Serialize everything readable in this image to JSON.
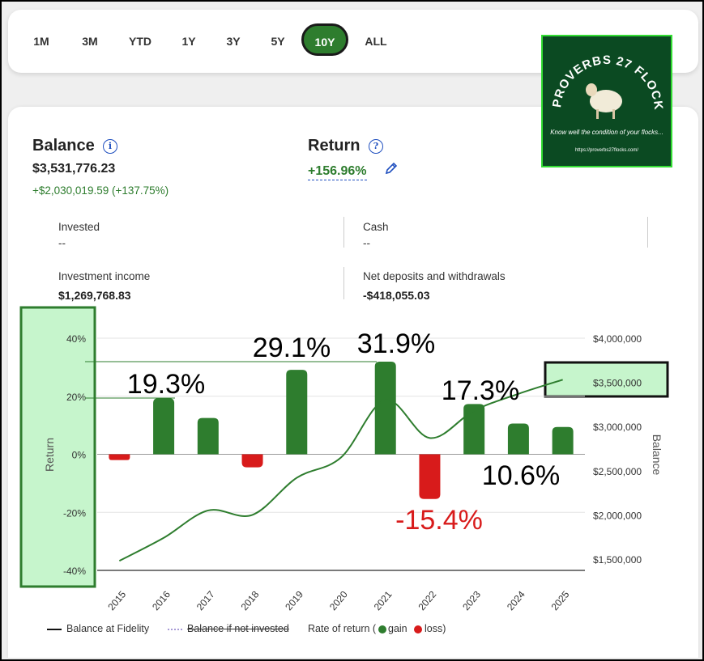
{
  "range_tabs": [
    {
      "label": "1M",
      "active": false
    },
    {
      "label": "3M",
      "active": false
    },
    {
      "label": "YTD",
      "active": false
    },
    {
      "label": "1Y",
      "active": false
    },
    {
      "label": "3Y",
      "active": false
    },
    {
      "label": "5Y",
      "active": false
    },
    {
      "label": "10Y",
      "active": true
    },
    {
      "label": "ALL",
      "active": false
    }
  ],
  "balance": {
    "title": "Balance",
    "value": "$3,531,776.23",
    "change": "+$2,030,019.59 (+137.75%)"
  },
  "return": {
    "title": "Return",
    "value": "+156.96%"
  },
  "stats": {
    "invested_label": "Invested",
    "invested_value": "--",
    "cash_label": "Cash",
    "cash_value": "--",
    "income_label": "Investment income",
    "income_value": "$1,269,768.83",
    "net_label": "Net deposits and withdrawals",
    "net_value": "-$418,055.03"
  },
  "logo": {
    "title": "PROVERBS 27 FLOCKS",
    "tagline": "Know well the condition of your flocks...",
    "url": "https://proverbs27flocks.com/"
  },
  "legend": {
    "balance": "Balance at Fidelity",
    "not_invested": "Balance if not invested",
    "rate": "Rate of return (",
    "gain": "gain",
    "loss": "loss)"
  },
  "colors": {
    "gain": "#2e7d2e",
    "loss": "#d81b1b",
    "highlight": "#c6f5cc"
  },
  "chart_data": {
    "type": "bar",
    "categories": [
      "2015",
      "2016",
      "2017",
      "2018",
      "2019",
      "2020",
      "2021",
      "2022",
      "2023",
      "2024",
      "2025"
    ],
    "series": [
      {
        "name": "Rate of return",
        "values": [
          -2.0,
          19.3,
          12.5,
          -4.5,
          29.1,
          0.0,
          31.9,
          -15.4,
          17.3,
          10.6,
          9.4
        ]
      },
      {
        "name": "Balance at Fidelity",
        "values": [
          1480000,
          1740000,
          2050000,
          2000000,
          2420000,
          2650000,
          3300000,
          2870000,
          3180000,
          3370000,
          3530000
        ]
      }
    ],
    "ylabel": "Return",
    "y2label": "Balance",
    "ylim": [
      -40,
      40
    ],
    "y2lim": [
      1500000,
      4000000
    ],
    "y_ticks": [
      "40%",
      "20%",
      "0%",
      "-20%",
      "-40%"
    ],
    "y2_ticks": [
      "$4,000,000",
      "$3,500,000",
      "$3,000,000",
      "$2,500,000",
      "$2,000,000",
      "$1,500,000"
    ],
    "annotations": [
      {
        "text": "19.3%",
        "color": "#000000"
      },
      {
        "text": "29.1%",
        "color": "#000000"
      },
      {
        "text": "31.9%",
        "color": "#000000"
      },
      {
        "text": "17.3%",
        "color": "#000000"
      },
      {
        "text": "10.6%",
        "color": "#000000"
      },
      {
        "text": "-15.4%",
        "color": "#d81b1b"
      }
    ]
  }
}
